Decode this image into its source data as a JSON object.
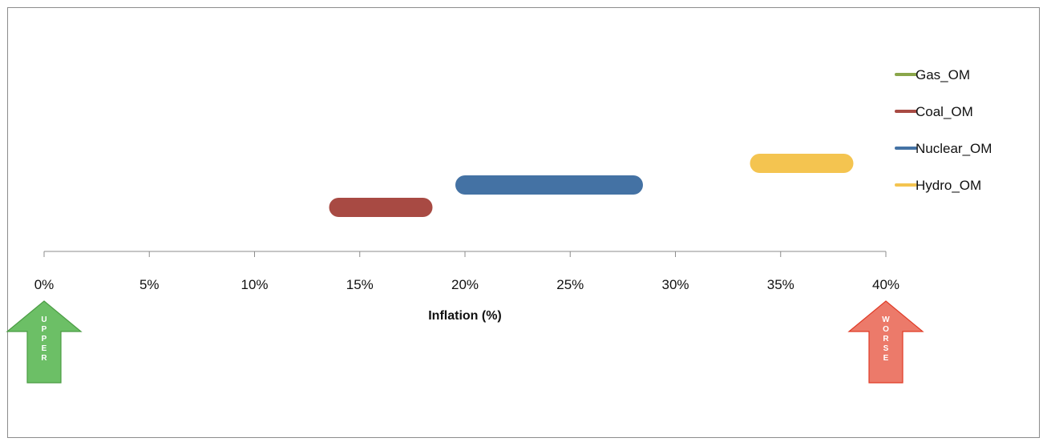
{
  "chart_data": {
    "type": "range-bar",
    "title": "",
    "xlabel": "Inflation (%)",
    "ylabel": "",
    "xlim": [
      0,
      40
    ],
    "x_ticks": [
      0,
      5,
      10,
      15,
      20,
      25,
      30,
      35,
      40
    ],
    "x_tick_labels": [
      "0%",
      "5%",
      "10%",
      "15%",
      "20%",
      "25%",
      "30%",
      "35%",
      "40%"
    ],
    "grid": false,
    "legend_position": "right",
    "series": [
      {
        "name": "Gas_OM",
        "color": "#8aa64a",
        "range": null,
        "level": 4
      },
      {
        "name": "Coal_OM",
        "color": "#a84a43",
        "range": [
          14,
          18
        ],
        "level": 1
      },
      {
        "name": "Nuclear_OM",
        "color": "#4472a4",
        "range": [
          20,
          28
        ],
        "level": 2
      },
      {
        "name": "Hydro_OM",
        "color": "#f4c450",
        "range": [
          34,
          38
        ],
        "level": 3
      }
    ],
    "annotations": [
      {
        "label": "UPPER",
        "letters": [
          "U",
          "P",
          "P",
          "E",
          "R"
        ],
        "color": "#6cbf66",
        "stroke": "#4a9c43",
        "at": 0
      },
      {
        "label": "WORSE",
        "letters": [
          "W",
          "O",
          "R",
          "S",
          "E"
        ],
        "color": "#ec7a6a",
        "stroke": "#e03a25",
        "at": 40
      }
    ]
  }
}
